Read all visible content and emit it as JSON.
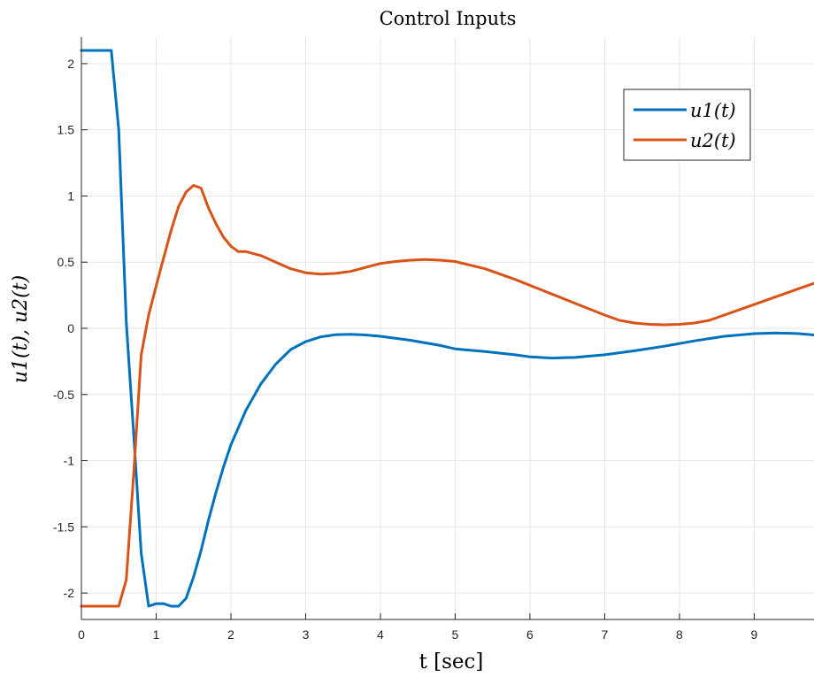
{
  "chart_data": {
    "type": "line",
    "title": "Control Inputs",
    "xlabel": "t [sec]",
    "ylabel": "u1(t), u2(t)",
    "xlim": [
      0,
      9.8
    ],
    "ylim": [
      -2.2,
      2.2
    ],
    "xticks": [
      0,
      1,
      2,
      3,
      4,
      5,
      6,
      7,
      8,
      9
    ],
    "yticks": [
      2,
      1.5,
      1,
      0.5,
      0,
      -0.5,
      -1,
      -1.5,
      -2
    ],
    "xtick_labels": [
      "0",
      "1",
      "2",
      "3",
      "4",
      "5",
      "6",
      "7",
      "8",
      "9"
    ],
    "ytick_labels": [
      "2",
      "1.5",
      "1",
      "0.5",
      "0",
      "-0.5",
      "-1",
      "-1.5",
      "-2"
    ],
    "grid": true,
    "legend_position": "top-right",
    "series": [
      {
        "name": "u1(t)",
        "color": "#0072BD",
        "x": [
          0,
          0.4,
          0.5,
          0.6,
          0.7,
          0.8,
          0.9,
          1.0,
          1.1,
          1.2,
          1.3,
          1.4,
          1.5,
          1.6,
          1.7,
          1.8,
          1.9,
          2.0,
          2.2,
          2.4,
          2.6,
          2.8,
          3.0,
          3.2,
          3.4,
          3.6,
          3.8,
          4.0,
          4.4,
          4.8,
          5.0,
          5.4,
          5.8,
          6.0,
          6.3,
          6.6,
          7.0,
          7.4,
          7.8,
          8.2,
          8.6,
          9.0,
          9.3,
          9.6,
          9.8
        ],
        "values": [
          2.1,
          2.1,
          1.5,
          0.05,
          -0.8,
          -1.7,
          -2.1,
          -2.08,
          -2.08,
          -2.1,
          -2.1,
          -2.04,
          -1.88,
          -1.68,
          -1.45,
          -1.24,
          -1.05,
          -0.88,
          -0.62,
          -0.42,
          -0.27,
          -0.16,
          -0.1,
          -0.065,
          -0.048,
          -0.045,
          -0.05,
          -0.06,
          -0.09,
          -0.13,
          -0.155,
          -0.175,
          -0.2,
          -0.215,
          -0.225,
          -0.22,
          -0.2,
          -0.17,
          -0.135,
          -0.095,
          -0.06,
          -0.04,
          -0.035,
          -0.04,
          -0.05
        ]
      },
      {
        "name": "u2(t)",
        "color": "#D95319",
        "x": [
          0,
          0.5,
          0.6,
          0.7,
          0.8,
          0.9,
          1.0,
          1.1,
          1.2,
          1.3,
          1.4,
          1.5,
          1.6,
          1.7,
          1.8,
          1.9,
          2.0,
          2.1,
          2.2,
          2.4,
          2.6,
          2.8,
          3.0,
          3.2,
          3.4,
          3.6,
          3.8,
          4.0,
          4.2,
          4.4,
          4.6,
          4.8,
          5.0,
          5.4,
          5.8,
          6.2,
          6.6,
          7.0,
          7.2,
          7.4,
          7.6,
          7.8,
          8.0,
          8.2,
          8.4,
          8.6,
          8.8,
          9.0,
          9.2,
          9.4,
          9.6,
          9.8
        ],
        "values": [
          -2.1,
          -2.1,
          -1.9,
          -1.1,
          -0.2,
          0.1,
          0.32,
          0.53,
          0.74,
          0.92,
          1.03,
          1.08,
          1.06,
          0.91,
          0.79,
          0.69,
          0.62,
          0.58,
          0.58,
          0.55,
          0.5,
          0.45,
          0.42,
          0.41,
          0.415,
          0.43,
          0.46,
          0.49,
          0.505,
          0.515,
          0.52,
          0.515,
          0.505,
          0.45,
          0.37,
          0.28,
          0.19,
          0.1,
          0.06,
          0.04,
          0.03,
          0.027,
          0.03,
          0.04,
          0.06,
          0.1,
          0.14,
          0.18,
          0.22,
          0.26,
          0.3,
          0.34
        ]
      }
    ]
  }
}
